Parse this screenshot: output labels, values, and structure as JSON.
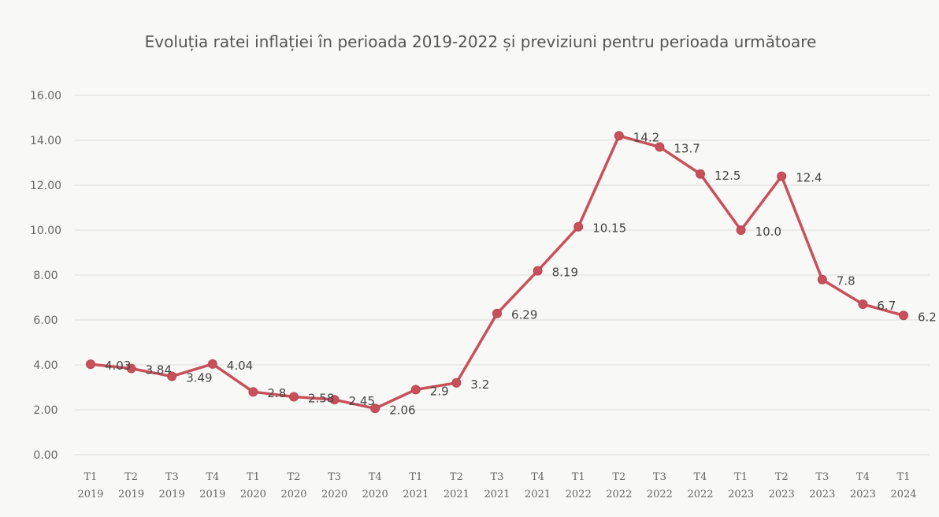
{
  "chart_data": {
    "type": "line",
    "title": "Evoluția ratei inflației în perioada 2019-2022 și previziuni pentru perioada următoare",
    "xlabel": "",
    "ylabel": "",
    "ylim": [
      0,
      16
    ],
    "y_ticks": [
      "0.00",
      "2.00",
      "4.00",
      "6.00",
      "8.00",
      "10.00",
      "12.00",
      "14.00",
      "16.00"
    ],
    "grid": true,
    "legend": "none",
    "categories": [
      [
        "T1",
        "2019"
      ],
      [
        "T2",
        "2019"
      ],
      [
        "T3",
        "2019"
      ],
      [
        "T4",
        "2019"
      ],
      [
        "T1",
        "2020"
      ],
      [
        "T2",
        "2020"
      ],
      [
        "T3",
        "2020"
      ],
      [
        "T4",
        "2020"
      ],
      [
        "T1",
        "2021"
      ],
      [
        "T2",
        "2021"
      ],
      [
        "T3",
        "2021"
      ],
      [
        "T4",
        "2021"
      ],
      [
        "T1",
        "2022"
      ],
      [
        "T2",
        "2022"
      ],
      [
        "T3",
        "2022"
      ],
      [
        "T4",
        "2022"
      ],
      [
        "T1",
        "2023"
      ],
      [
        "T2",
        "2023"
      ],
      [
        "T3",
        "2023"
      ],
      [
        "T4",
        "2023"
      ],
      [
        "T1",
        "2024"
      ]
    ],
    "series": [
      {
        "color": "#c8505a",
        "values": [
          4.03,
          3.84,
          3.49,
          4.04,
          2.8,
          2.58,
          2.45,
          2.06,
          2.9,
          3.2,
          6.29,
          8.19,
          10.15,
          14.2,
          13.7,
          12.5,
          10.0,
          12.4,
          7.8,
          6.7,
          6.2
        ],
        "data_labels": [
          "4.03",
          "3.84",
          "3.49",
          "4.04",
          "2.8",
          "2.58",
          "2.45",
          "2.06",
          "2.9",
          "3.2",
          "6.29",
          "8.19",
          "10.15",
          "14.2",
          "13.7",
          "12.5",
          "10.0",
          "12.4",
          "7.8",
          "6.7",
          "6.2"
        ]
      }
    ]
  }
}
